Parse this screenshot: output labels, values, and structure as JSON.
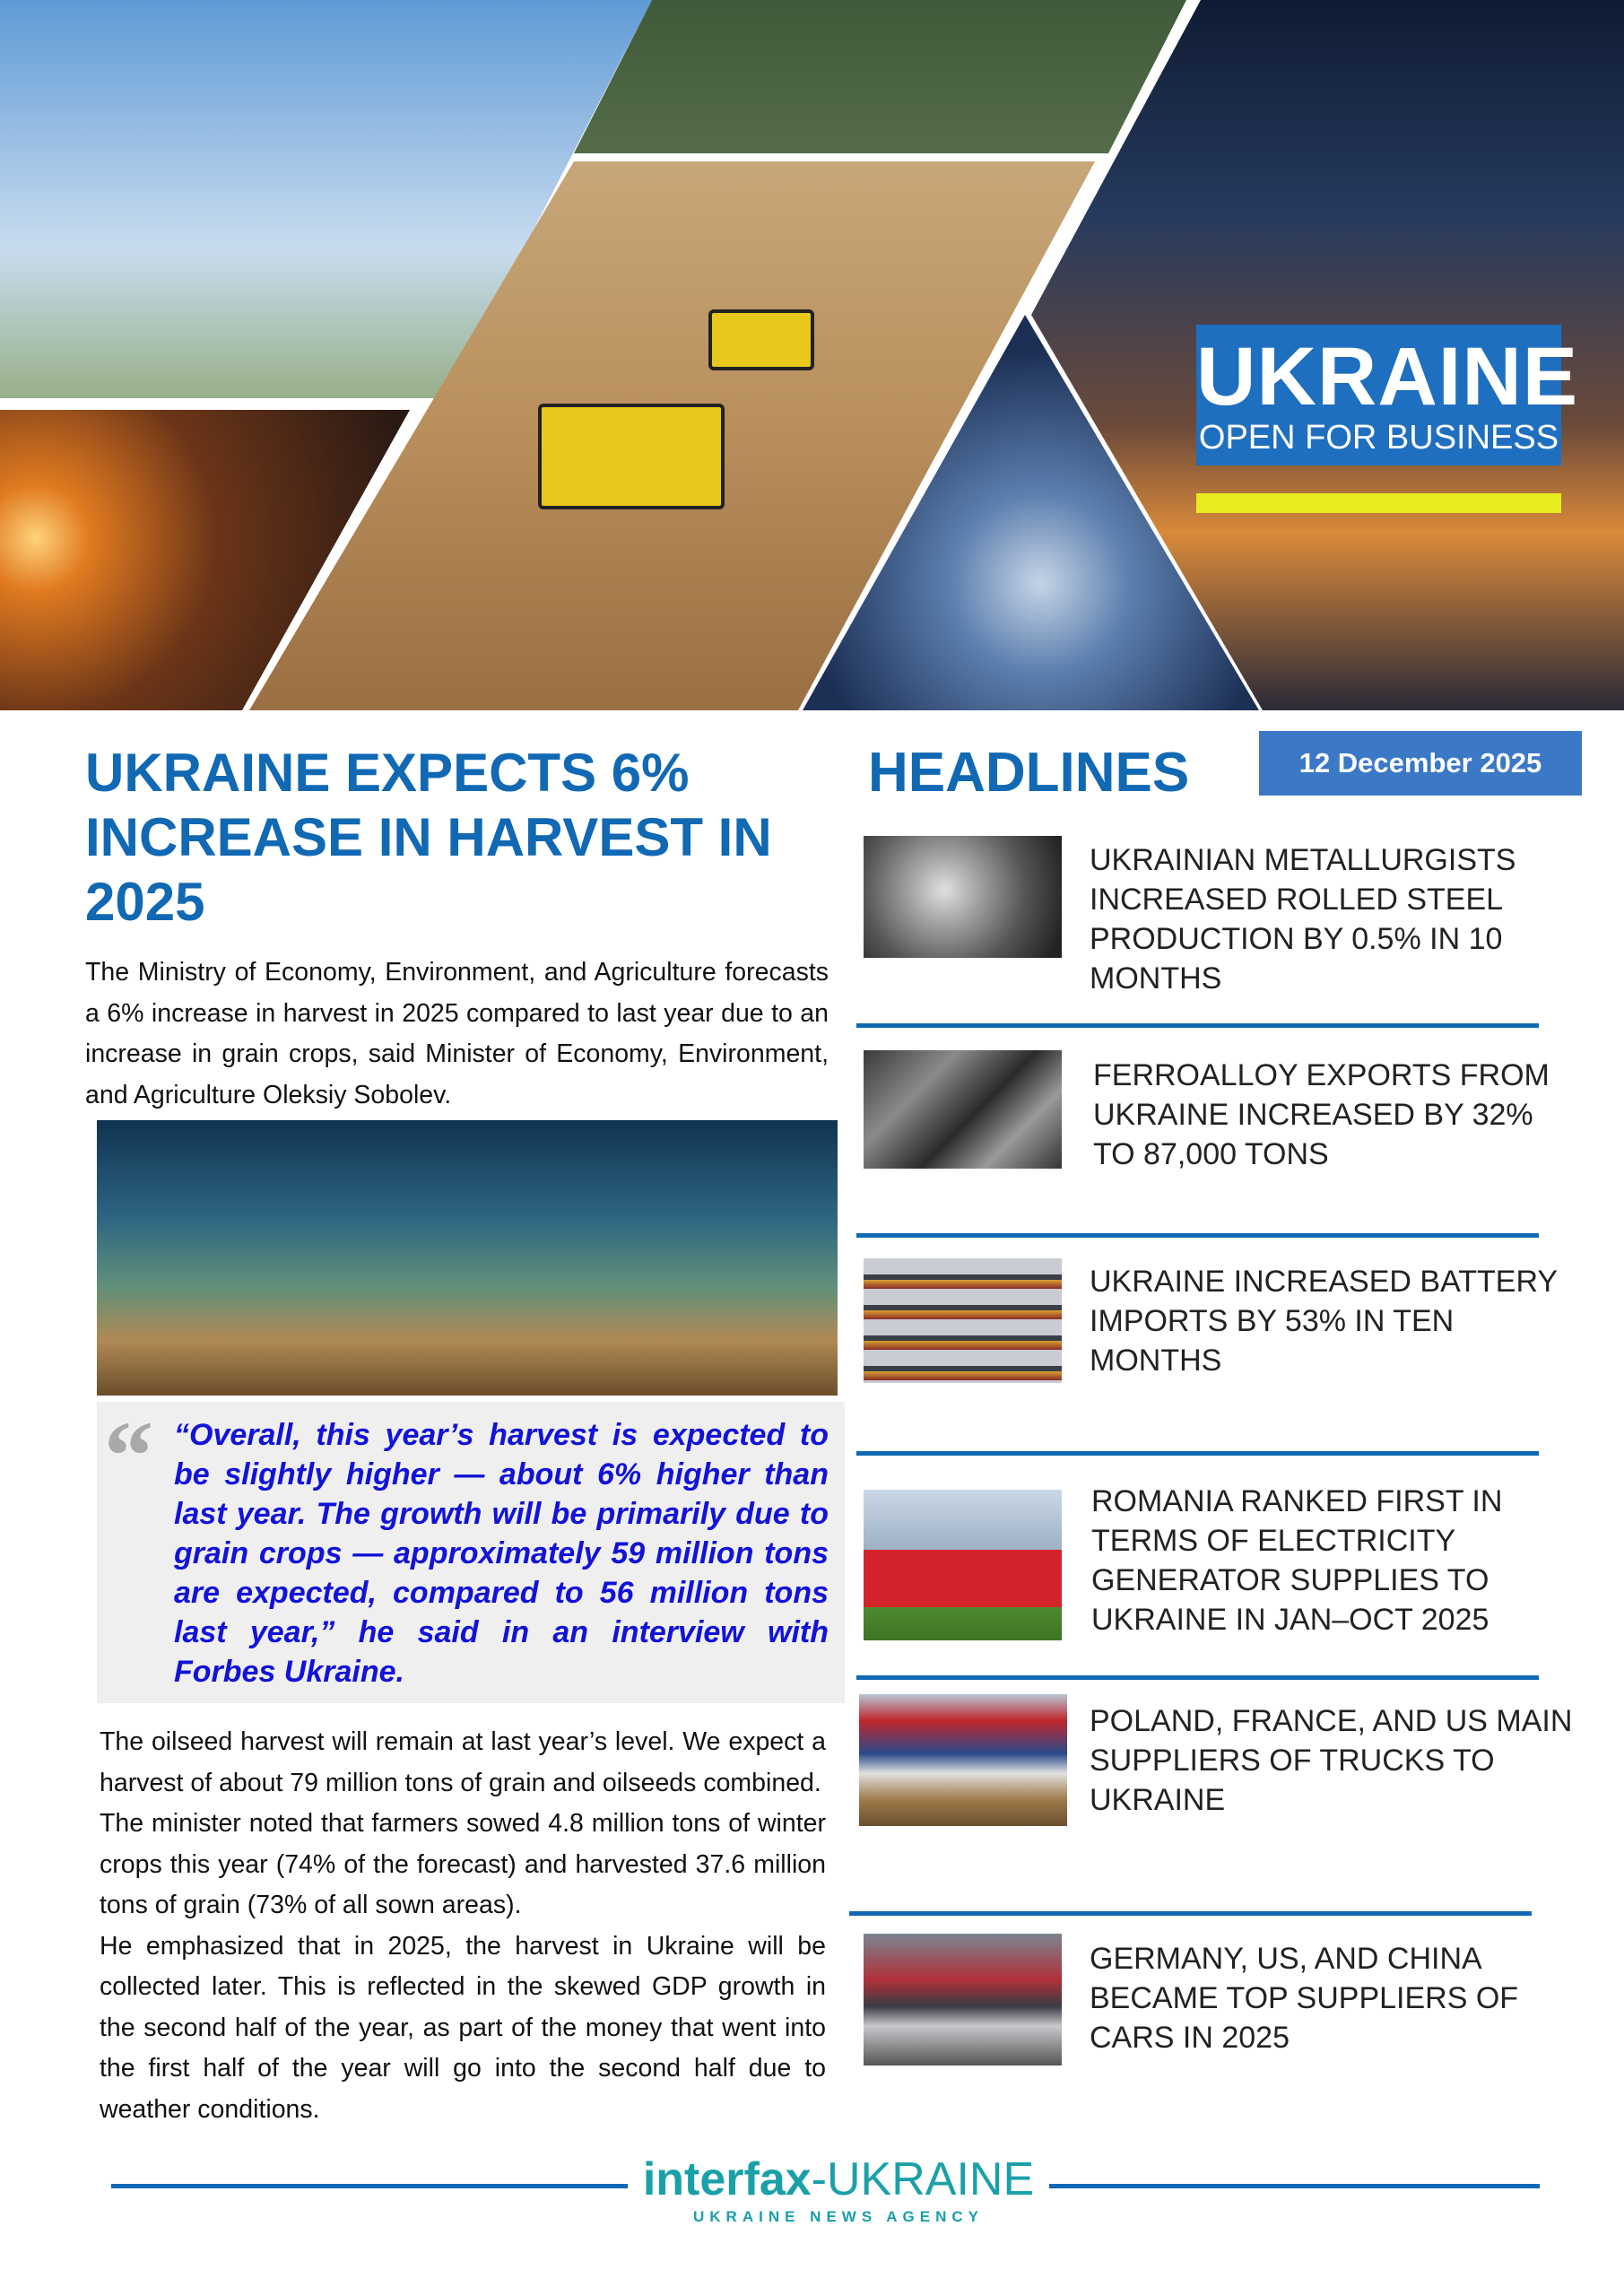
{
  "hero": {
    "brand_title": "UKRAINE",
    "brand_subtitle": "OPEN FOR BUSINESS",
    "colors": {
      "brand_box": "#1f6fc0",
      "brand_bar": "#e7ec1f"
    }
  },
  "article": {
    "title": "UKRAINE EXPECTS 6% INCREASE IN HARVEST IN 2025",
    "intro": "The Ministry of Economy, Environment, and Agriculture forecasts a 6% increase in harvest in 2025 compared to last year due to an increase in grain crops, said Minister of Economy, Environment, and Agriculture Oleksiy Sobolev.",
    "quote": "“Overall, this year’s harvest is expected to be slightly higher — about 6% higher than last year. The growth will be primarily due to grain crops — approximately 59 million tons are expected, compared to 56 million tons last year,” he said in an interview with Forbes Ukraine.",
    "paragraphs": [
      "The oilseed harvest will remain at last year’s level. We expect a harvest of about 79 million tons of grain and oilseeds combined.",
      "The minister noted that farmers sowed 4.8 million tons of winter crops this year (74% of the forecast) and harvested 37.6 million tons of grain (73% of all sown areas).",
      "He emphasized that in 2025, the harvest in Ukraine will be collected later. This is reflected in the skewed GDP growth in the second half of the year, as part of the money that went into the first half of the year will go into the second half due to weather conditions."
    ]
  },
  "headlines": {
    "title": "HEADLINES",
    "date": "12 December 2025",
    "items": [
      {
        "text": "UKRAINIAN METALLURGISTS INCREASED ROLLED STEEL PRODUCTION BY 0.5% IN 10 MONTHS"
      },
      {
        "text": "FERROALLOY EXPORTS FROM UKRAINE INCREASED BY 32% TO 87,000 TONS"
      },
      {
        "text": "UKRAINE INCREASED BATTERY IMPORTS BY 53% IN TEN MONTHS"
      },
      {
        "text": "ROMANIA RANKED FIRST IN TERMS OF ELECTRICITY GENERATOR SUPPLIES TO UKRAINE IN JAN–OCT 2025"
      },
      {
        "text": "POLAND, FRANCE, AND US MAIN SUPPLIERS OF TRUCKS TO UKRAINE"
      },
      {
        "text": "GERMANY, US, AND CHINA BECAME TOP SUPPLIERS OF CARS IN 2025"
      }
    ]
  },
  "footer": {
    "logo_inter": "interfax",
    "logo_ukraine": "-UKRAINE",
    "logo_tagline": "UKRAINE NEWS AGENCY"
  },
  "colors": {
    "accent": "#1168b3",
    "quote_text": "#1212d8",
    "date_box": "#3b78c6",
    "logo": "#1aa0a8"
  }
}
